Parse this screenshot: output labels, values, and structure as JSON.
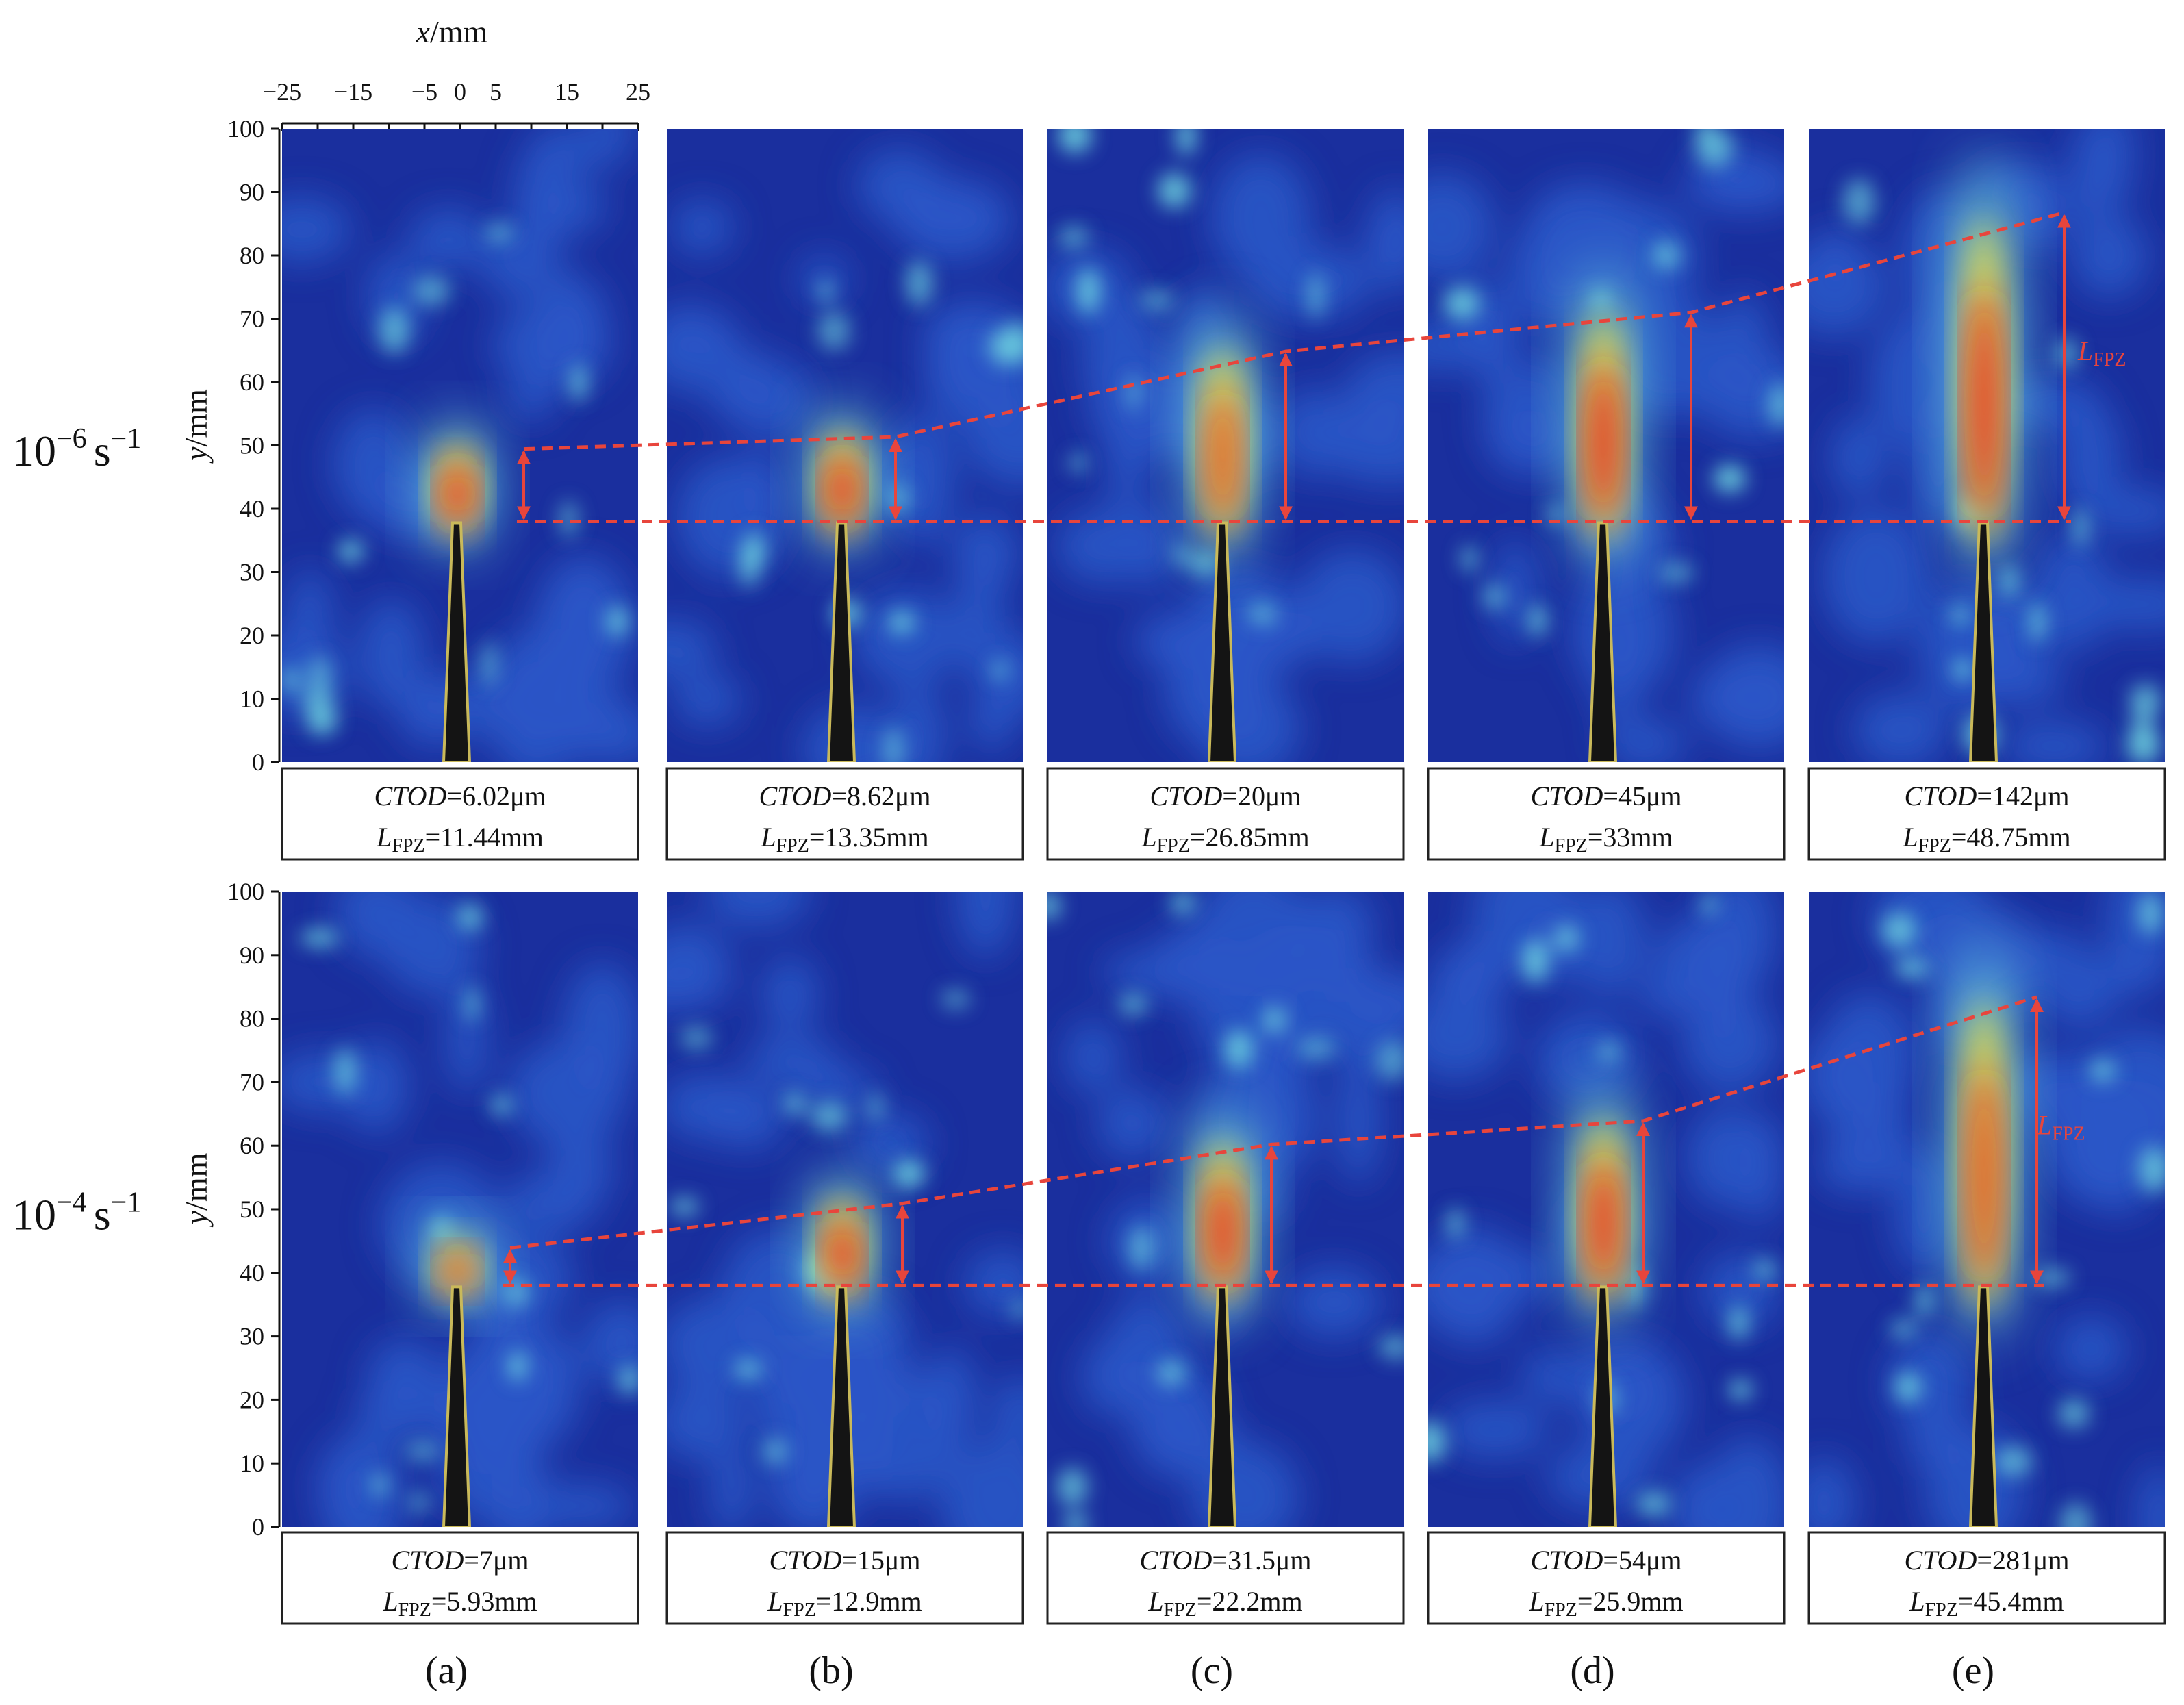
{
  "figure": {
    "x_axis": {
      "title_var": "x",
      "title_unit": "/mm",
      "ticks": [
        "−25",
        "−15",
        "−5",
        "0",
        "5",
        "15",
        "25"
      ]
    },
    "y_axis": {
      "title_var": "y",
      "title_unit": "/mm",
      "ticks": [
        "0",
        "10",
        "20",
        "30",
        "40",
        "50",
        "60",
        "70",
        "80",
        "90",
        "100"
      ]
    },
    "rows": [
      {
        "rate_base": "10",
        "rate_exp": "−6",
        "rate_unit": "s",
        "rate_unit_exp": "−1",
        "panels": [
          {
            "ctod_label": "CTOD",
            "ctod_value": "=6.02μm",
            "lfpz_label": "L",
            "lfpz_sub": "FPZ",
            "lfpz_value": "=11.44mm",
            "lfpz_mm": 11.44,
            "hot_peak": 1.0
          },
          {
            "ctod_label": "CTOD",
            "ctod_value": "=8.62μm",
            "lfpz_label": "L",
            "lfpz_sub": "FPZ",
            "lfpz_value": "=13.35mm",
            "lfpz_mm": 13.35,
            "hot_peak": 1.0
          },
          {
            "ctod_label": "CTOD",
            "ctod_value": "=20μm",
            "lfpz_label": "L",
            "lfpz_sub": "FPZ",
            "lfpz_value": "=26.85mm",
            "lfpz_mm": 26.85,
            "hot_peak": 0.75
          },
          {
            "ctod_label": "CTOD",
            "ctod_value": "=45μm",
            "lfpz_label": "L",
            "lfpz_sub": "FPZ",
            "lfpz_value": "=33mm",
            "lfpz_mm": 33,
            "hot_peak": 1.0
          },
          {
            "ctod_label": "CTOD",
            "ctod_value": "=142μm",
            "lfpz_label": "L",
            "lfpz_sub": "FPZ",
            "lfpz_value": "=48.75mm",
            "lfpz_mm": 48.75,
            "hot_peak": 1.0
          }
        ]
      },
      {
        "rate_base": "10",
        "rate_exp": "−4",
        "rate_unit": "s",
        "rate_unit_exp": "−1",
        "panels": [
          {
            "ctod_label": "CTOD",
            "ctod_value": "=7μm",
            "lfpz_label": "L",
            "lfpz_sub": "FPZ",
            "lfpz_value": "=5.93mm",
            "lfpz_mm": 5.93,
            "hot_peak": 0.8
          },
          {
            "ctod_label": "CTOD",
            "ctod_value": "=15μm",
            "lfpz_label": "L",
            "lfpz_sub": "FPZ",
            "lfpz_value": "=12.9mm",
            "lfpz_mm": 12.9,
            "hot_peak": 1.0
          },
          {
            "ctod_label": "CTOD",
            "ctod_value": "=31.5μm",
            "lfpz_label": "L",
            "lfpz_sub": "FPZ",
            "lfpz_value": "=22.2mm",
            "lfpz_mm": 22.2,
            "hot_peak": 1.0
          },
          {
            "ctod_label": "CTOD",
            "ctod_value": "=54μm",
            "lfpz_label": "L",
            "lfpz_sub": "FPZ",
            "lfpz_value": "=25.9mm",
            "lfpz_mm": 25.9,
            "hot_peak": 1.0
          },
          {
            "ctod_label": "CTOD",
            "ctod_value": "=281μm",
            "lfpz_label": "L",
            "lfpz_sub": "FPZ",
            "lfpz_value": "=45.4mm",
            "lfpz_mm": 45.4,
            "hot_peak": 0.8
          }
        ]
      }
    ],
    "panel_letters": [
      "(a)",
      "(b)",
      "(c)",
      "(d)",
      "(e)"
    ],
    "lfpz_annotation": {
      "label": "L",
      "sub": "FPZ"
    },
    "crack_tip_y_mm": 38,
    "colors": {
      "field_dark": "#1a2f9e",
      "field_mid": "#2a56c6",
      "hot": "#e8231c",
      "warm": "#f3e03a",
      "cool": "#6fd6e0",
      "annotation": "#e8453c",
      "notch": "#141414",
      "notch_edge": "#c9b95a"
    }
  }
}
